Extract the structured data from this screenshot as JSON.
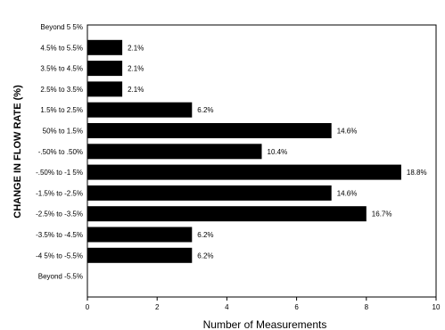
{
  "chart_data": {
    "type": "bar",
    "orientation": "horizontal",
    "categories": [
      "Beyond 5 5%",
      "4.5% to 5.5%",
      "3.5% to 4.5%",
      "2.5% to 3.5%",
      "1.5% to 2.5%",
      "50% to 1.5%",
      "-.50% to .50%",
      "-.50% to -1 5%",
      "-1.5% to -2.5%",
      "-2.5% to -3.5%",
      "-3.5% to -4.5%",
      "-4 5% to -5.5%",
      "Beyond -5.5%"
    ],
    "values": [
      0,
      1,
      1,
      1,
      3,
      7,
      5,
      9,
      7,
      8,
      3,
      3,
      0
    ],
    "data_labels": [
      "",
      "2.1%",
      "2.1%",
      "2.1%",
      "6.2%",
      "14.6%",
      "10.4%",
      "18.8%",
      "14.6%",
      "16.7%",
      "6.2%",
      "6.2%",
      ""
    ],
    "xlabel": "Number of Measurements",
    "ylabel": "CHANGE IN FLOW RATE (%)",
    "xlim": [
      0,
      10
    ],
    "xticks": [
      "0",
      "2",
      "4",
      "6",
      "8",
      "10"
    ],
    "grid": false,
    "bar_color": "#000000"
  }
}
